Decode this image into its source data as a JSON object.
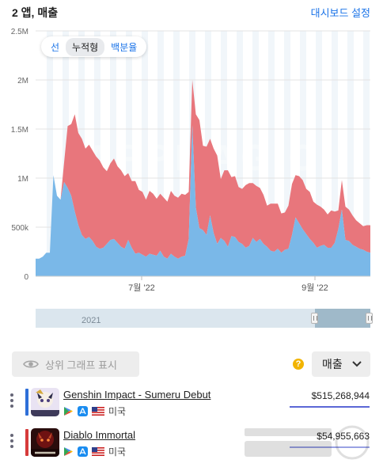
{
  "header": {
    "title": "2 앱, 매출",
    "settings": "대시보드 설정"
  },
  "toggle": {
    "options": [
      "선",
      "누적형",
      "백분율"
    ],
    "active": "누적형"
  },
  "chart_data": {
    "type": "area",
    "stacked": true,
    "y_tick_labels": [
      "0",
      "500k",
      "1M",
      "1.5M",
      "2M",
      "2.5M"
    ],
    "ylim": [
      0,
      2500000
    ],
    "x_tick_labels": [
      "7월 '22",
      "9월 '22"
    ],
    "watermark": "APPMAGIC",
    "grid": true,
    "colors": {
      "genshin": "#7ab8e8",
      "diablo": "#e8767c"
    },
    "series": [
      {
        "name": "Genshin Impact - Sumeru Debut",
        "values": [
          180000,
          180000,
          200000,
          240000,
          240000,
          1030000,
          820000,
          780000,
          960000,
          900000,
          820000,
          660000,
          520000,
          420000,
          380000,
          400000,
          360000,
          300000,
          280000,
          290000,
          330000,
          370000,
          380000,
          340000,
          300000,
          280000,
          370000,
          290000,
          230000,
          240000,
          220000,
          200000,
          230000,
          220000,
          210000,
          260000,
          200000,
          180000,
          230000,
          200000,
          180000,
          200000,
          210000,
          380000,
          1540000,
          700000,
          490000,
          470000,
          420000,
          620000,
          440000,
          330000,
          390000,
          360000,
          300000,
          410000,
          400000,
          350000,
          330000,
          290000,
          310000,
          390000,
          350000,
          380000,
          330000,
          300000,
          260000,
          250000,
          280000,
          240000,
          270000,
          280000,
          420000,
          600000,
          540000,
          480000,
          430000,
          380000,
          340000,
          290000,
          310000,
          320000,
          290000,
          290000,
          340000,
          480000,
          680000,
          370000,
          360000,
          320000,
          300000,
          280000,
          270000,
          250000,
          240000
        ]
      },
      {
        "name": "Diablo Immortal",
        "values": [
          0,
          0,
          0,
          0,
          0,
          0,
          0,
          0,
          200000,
          630000,
          730000,
          990000,
          940000,
          980000,
          920000,
          940000,
          920000,
          920000,
          900000,
          820000,
          740000,
          780000,
          820000,
          780000,
          780000,
          740000,
          680000,
          680000,
          740000,
          640000,
          640000,
          580000,
          640000,
          620000,
          580000,
          580000,
          600000,
          580000,
          640000,
          620000,
          620000,
          640000,
          620000,
          480000,
          460000,
          950000,
          1100000,
          860000,
          900000,
          780000,
          860000,
          900000,
          600000,
          720000,
          780000,
          600000,
          620000,
          560000,
          560000,
          640000,
          640000,
          560000,
          570000,
          520000,
          500000,
          420000,
          480000,
          490000,
          460000,
          400000,
          380000,
          440000,
          520000,
          430000,
          480000,
          500000,
          460000,
          480000,
          420000,
          440000,
          400000,
          360000,
          340000,
          380000,
          320000,
          190000,
          300000,
          340000,
          320000,
          300000,
          270000,
          260000,
          240000,
          270000,
          280000
        ]
      }
    ]
  },
  "navigator": {
    "year_label": "2021",
    "window_start_pct": 83.5
  },
  "controls": {
    "top_graph_button": "상위 그래프 표시",
    "help": "?",
    "metric_select": "매출"
  },
  "apps": [
    {
      "name": "Genshin Impact - Sumeru Debut",
      "country": "미국",
      "value": "$515,268,944",
      "color": "#2e6fd8",
      "icon": "genshin-app-icon"
    },
    {
      "name": "Diablo Immortal",
      "country": "미국",
      "value": "$54,955,663",
      "color": "#d63a3a",
      "icon": "diablo-app-icon"
    }
  ]
}
